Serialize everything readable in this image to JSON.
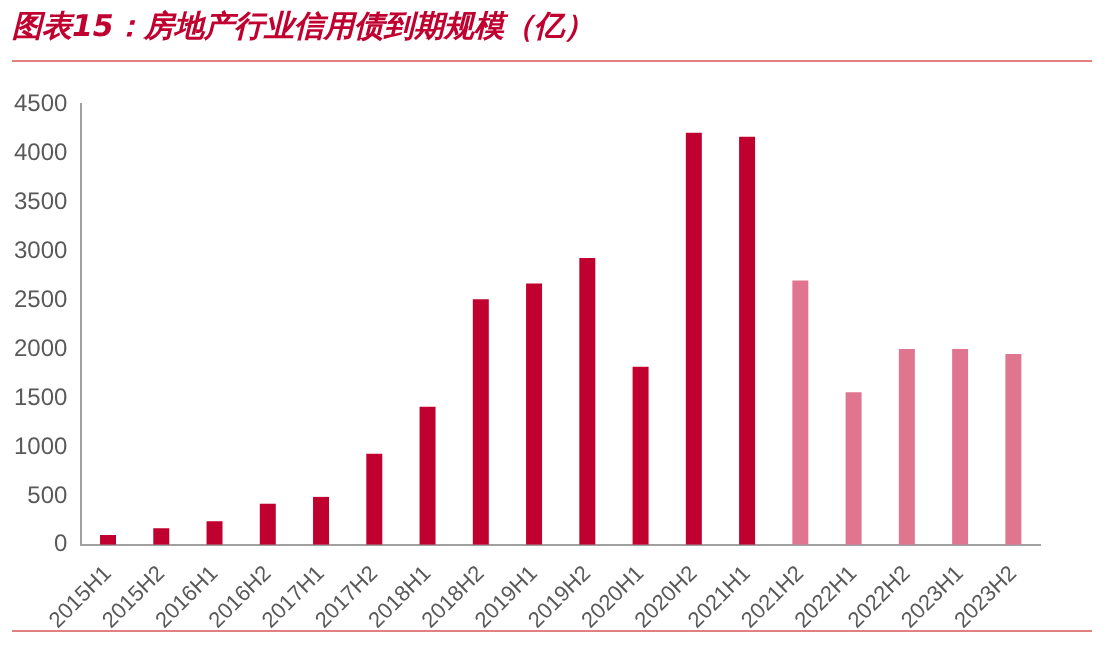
{
  "chart_data": {
    "type": "bar",
    "title": "图表15：房地产行业信用债到期规模（亿）",
    "categories": [
      "2015H1",
      "2015H2",
      "2016H1",
      "2016H2",
      "2017H1",
      "2017H2",
      "2018H1",
      "2018H2",
      "2019H1",
      "2019H2",
      "2020H1",
      "2020H2",
      "2021H1",
      "2021H2",
      "2022H1",
      "2022H2",
      "2023H1",
      "2023H2"
    ],
    "values": [
      100,
      170,
      240,
      420,
      490,
      930,
      1410,
      2510,
      2670,
      2930,
      1820,
      4210,
      4170,
      2700,
      1560,
      2000,
      2000,
      1950
    ],
    "colors": [
      "#c0002f",
      "#c0002f",
      "#c0002f",
      "#c0002f",
      "#c0002f",
      "#c0002f",
      "#c0002f",
      "#c0002f",
      "#c0002f",
      "#c0002f",
      "#c0002f",
      "#c0002f",
      "#c0002f",
      "#e07590",
      "#e07590",
      "#e07590",
      "#e07590",
      "#e07590"
    ],
    "ylim": [
      0,
      4500
    ],
    "yticks": [
      0,
      500,
      1000,
      1500,
      2000,
      2500,
      3000,
      3500,
      4000,
      4500
    ],
    "grid": false,
    "legend": false
  }
}
